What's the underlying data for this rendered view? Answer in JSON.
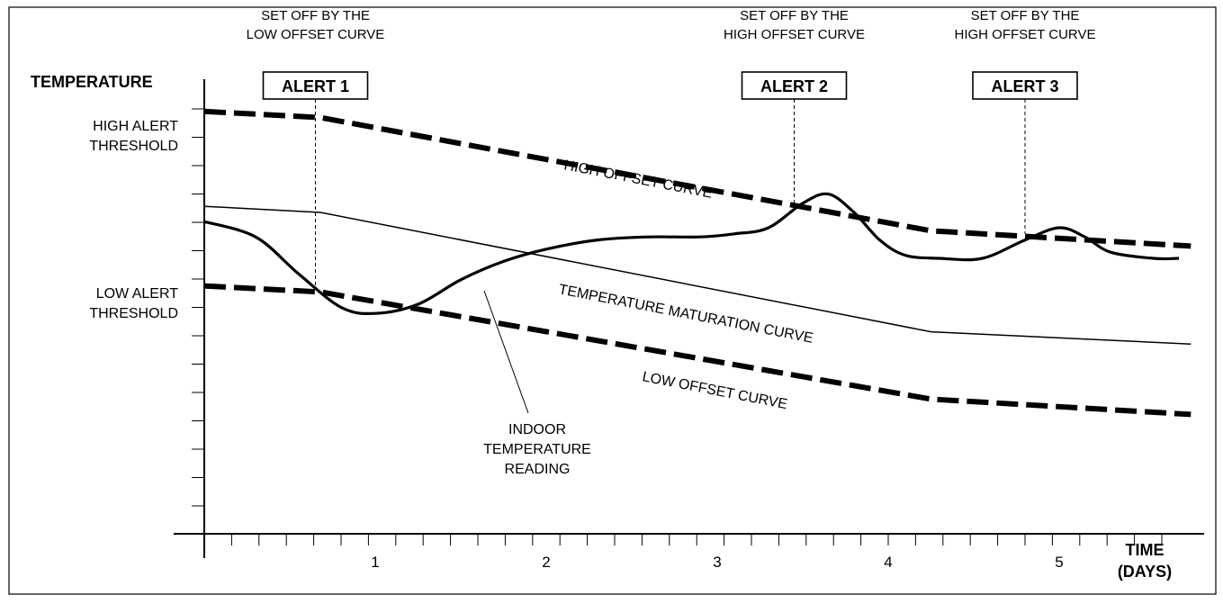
{
  "chart_data": {
    "type": "line",
    "title": "",
    "ylabel": "TEMPERATURE",
    "xlabel": {
      "line1": "TIME",
      "line2": "(DAYS)"
    },
    "xlim": [
      0,
      5.75
    ],
    "ylim": [
      0,
      15
    ],
    "x_ticks": [
      {
        "value": 1,
        "label": "1"
      },
      {
        "value": 2,
        "label": "2"
      },
      {
        "value": 3,
        "label": "3"
      },
      {
        "value": 4,
        "label": "4"
      },
      {
        "value": 5,
        "label": "5"
      }
    ],
    "y_threshold_labels": [
      {
        "line1": "HIGH ALERT",
        "line2": "THRESHOLD",
        "value": 13.8
      },
      {
        "line1": "LOW ALERT",
        "line2": "THRESHOLD",
        "value": 8.1
      }
    ],
    "series": [
      {
        "name": "HIGH OFFSET CURVE",
        "style": "dashed-thick",
        "x": [
          0,
          0.68,
          4.25,
          5.77
        ],
        "y": [
          13.8,
          13.6,
          9.9,
          9.4
        ]
      },
      {
        "name": "TEMPERATURE MATURATION CURVE",
        "style": "thin",
        "x": [
          0,
          0.68,
          4.25,
          5.77
        ],
        "y": [
          10.7,
          10.5,
          6.6,
          6.2
        ]
      },
      {
        "name": "LOW OFFSET CURVE",
        "style": "dashed-thick",
        "x": [
          0,
          0.68,
          4.25,
          5.77
        ],
        "y": [
          8.1,
          7.9,
          4.4,
          3.9
        ]
      },
      {
        "name": "INDOOR TEMPERATURE READING",
        "style": "thick",
        "x": [
          0,
          0.3,
          0.55,
          0.8,
          1.0,
          1.25,
          1.5,
          1.75,
          2.0,
          2.3,
          2.6,
          2.9,
          3.1,
          3.3,
          3.5,
          3.65,
          3.8,
          3.95,
          4.1,
          4.3,
          4.55,
          4.8,
          5.0,
          5.15,
          5.3,
          5.55,
          5.7
        ],
        "y": [
          10.2,
          9.7,
          8.5,
          7.4,
          7.2,
          7.5,
          8.3,
          8.9,
          9.3,
          9.6,
          9.7,
          9.7,
          9.8,
          10.0,
          10.8,
          11.1,
          10.5,
          9.6,
          9.1,
          9.0,
          9.0,
          9.6,
          10.0,
          9.7,
          9.2,
          9.0,
          9.0
        ]
      }
    ],
    "annotations": [
      {
        "x": 0.65,
        "caption_line1": "SET OFF BY THE",
        "caption_line2": "LOW OFFSET CURVE",
        "alert_label": "ALERT 1",
        "line_to_y": 8.0
      },
      {
        "x": 3.45,
        "caption_line1": "SET OFF BY THE",
        "caption_line2": "HIGH OFFSET CURVE",
        "alert_label": "ALERT 2",
        "line_to_y": 10.8
      },
      {
        "x": 4.8,
        "caption_line1": "SET OFF BY THE",
        "caption_line2": "HIGH OFFSET CURVE",
        "alert_label": "ALERT 3",
        "line_to_y": 9.8
      }
    ],
    "curve_labels": {
      "high": "HIGH OFFSET CURVE",
      "maturation": "TEMPERATURE MATURATION CURVE",
      "low": "LOW OFFSET CURVE",
      "indoor_line1": "INDOOR",
      "indoor_line2": "TEMPERATURE",
      "indoor_line3": "READING"
    },
    "grid": false,
    "legend": "none"
  }
}
